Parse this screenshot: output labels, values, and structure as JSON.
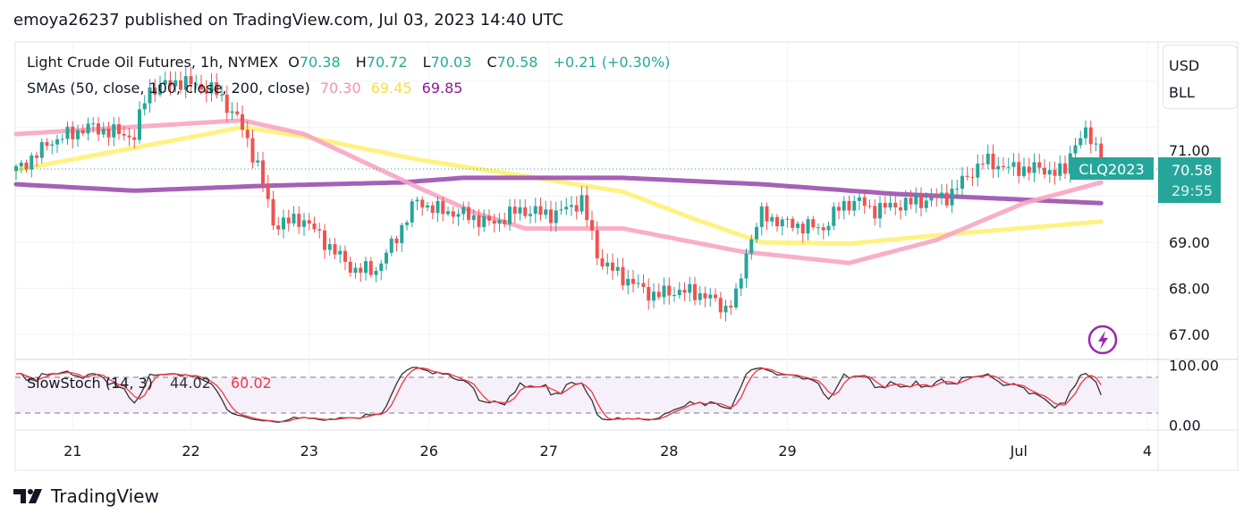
{
  "header": {
    "publish_line": "emoya26237 published on TradingView.com, Jul 03, 2023 14:40 UTC"
  },
  "legend": {
    "symbol": "Light Crude Oil Futures, 1h, NYMEX",
    "o_label": "O",
    "o": "70.38",
    "h_label": "H",
    "h": "70.72",
    "l_label": "L",
    "l": "70.03",
    "c_label": "C",
    "c": "70.58",
    "change": "+0.21 (+0.30%)",
    "sma_label": "SMAs (50, close, 100, close, 200, close)",
    "sma50": "70.30",
    "sma100": "69.45",
    "sma200": "69.85",
    "stoch_label": "SlowStoch (14, 3)",
    "stoch_k": "44.02",
    "stoch_d": "60.02"
  },
  "currency": {
    "unit1": "USD",
    "unit2": "BLL"
  },
  "price_tag": {
    "ticker": "CLQ2023",
    "price": "70.58",
    "countdown": "29:55"
  },
  "footer": {
    "brand": "TradingView"
  },
  "colors": {
    "up": "#26a69a",
    "down": "#ef5350",
    "sma50": "#f8a5c2",
    "sma100": "#fff176",
    "sma200": "#9c4fae",
    "stoch_k": "#333333",
    "stoch_d": "#f23645"
  },
  "chart_data": {
    "type": "candlestick",
    "title": "Light Crude Oil Futures, 1h, NYMEX",
    "ylim": [
      66.5,
      73.3
    ],
    "y_ticks": [
      "71.00",
      "69.00",
      "68.00",
      "67.00"
    ],
    "y_tick_values": [
      71,
      69,
      68,
      67
    ],
    "x_ticks": [
      {
        "label": "21",
        "bar": 11
      },
      {
        "label": "22",
        "bar": 34
      },
      {
        "label": "23",
        "bar": 57
      },
      {
        "label": "26",
        "bar": 80.3
      },
      {
        "label": "27",
        "bar": 103.6
      },
      {
        "label": "28",
        "bar": 127
      },
      {
        "label": "29",
        "bar": 150
      },
      {
        "label": "Jul",
        "bar": 195
      },
      {
        "label": "4",
        "bar": 220
      }
    ],
    "close_anchors": [
      [
        0,
        70.57
      ],
      [
        5,
        71.0
      ],
      [
        6,
        71.15
      ],
      [
        14,
        71.5
      ],
      [
        23,
        71.3
      ],
      [
        25.5,
        72.3
      ],
      [
        31.7,
        72.5
      ],
      [
        38.6,
        72.3
      ],
      [
        43,
        71.7
      ],
      [
        47.3,
        70.6
      ],
      [
        50,
        69.4
      ],
      [
        56,
        69.5
      ],
      [
        61,
        68.9
      ],
      [
        65.6,
        68.4
      ],
      [
        70,
        68.4
      ],
      [
        73.4,
        69.0
      ],
      [
        77.7,
        69.9
      ],
      [
        82,
        69.7
      ],
      [
        87.3,
        69.6
      ],
      [
        92.5,
        69.4
      ],
      [
        97.7,
        69.7
      ],
      [
        104.6,
        69.6
      ],
      [
        110,
        69.9
      ],
      [
        113.4,
        68.6
      ],
      [
        118.6,
        68.2
      ],
      [
        123.8,
        67.85
      ],
      [
        129,
        67.95
      ],
      [
        134.2,
        67.85
      ],
      [
        137.7,
        67.55
      ],
      [
        140.3,
        67.85
      ],
      [
        142,
        68.8
      ],
      [
        144.7,
        69.6
      ],
      [
        150,
        69.4
      ],
      [
        156.9,
        69.3
      ],
      [
        160.4,
        69.8
      ],
      [
        163.8,
        69.9
      ],
      [
        166.4,
        69.7
      ],
      [
        170.8,
        69.8
      ],
      [
        176,
        69.9
      ],
      [
        181.2,
        70.0
      ],
      [
        184.7,
        70.4
      ],
      [
        188.2,
        70.77
      ],
      [
        193.4,
        70.6
      ],
      [
        198.6,
        70.6
      ],
      [
        203.8,
        70.5
      ],
      [
        205.6,
        71.15
      ],
      [
        208.2,
        71.35
      ],
      [
        210,
        71.1
      ],
      [
        211,
        70.58
      ]
    ],
    "series": [
      {
        "name": "SMA 50",
        "points": [
          [
            0,
            71.35
          ],
          [
            44,
            71.65
          ],
          [
            56,
            71.35
          ],
          [
            78,
            70.2
          ],
          [
            89,
            69.65
          ],
          [
            99,
            69.3
          ],
          [
            118,
            69.3
          ],
          [
            141,
            68.8
          ],
          [
            162,
            68.55
          ],
          [
            179,
            69.05
          ],
          [
            196,
            69.85
          ],
          [
            211,
            70.3
          ]
        ]
      },
      {
        "name": "SMA 100",
        "points": [
          [
            0,
            70.57
          ],
          [
            23,
            71.05
          ],
          [
            44,
            71.5
          ],
          [
            56,
            71.3
          ],
          [
            78,
            70.8
          ],
          [
            101,
            70.4
          ],
          [
            118,
            70.1
          ],
          [
            132,
            69.5
          ],
          [
            145,
            69.0
          ],
          [
            162,
            68.97
          ],
          [
            179,
            69.15
          ],
          [
            211,
            69.45
          ]
        ]
      },
      {
        "name": "SMA 200",
        "points": [
          [
            0,
            70.26
          ],
          [
            23,
            70.12
          ],
          [
            49,
            70.23
          ],
          [
            75,
            70.3
          ],
          [
            87,
            70.4
          ],
          [
            118,
            70.4
          ],
          [
            145,
            70.26
          ],
          [
            171,
            70.05
          ],
          [
            211,
            69.85
          ]
        ]
      }
    ],
    "stoch": {
      "k_period": 14,
      "smooth": 3,
      "levels": [
        80,
        20
      ],
      "ylim": [
        0,
        100
      ],
      "y_ticks": [
        "100.00",
        "0.00"
      ]
    }
  }
}
